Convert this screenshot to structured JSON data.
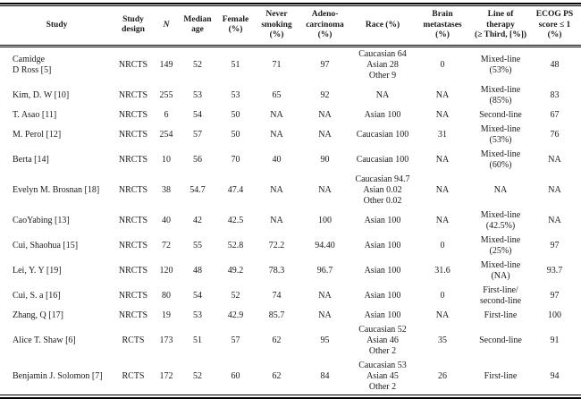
{
  "table": {
    "columns": [
      {
        "label": "Study"
      },
      {
        "label": "Study\ndesign"
      },
      {
        "label": "N"
      },
      {
        "label": "Median\nage"
      },
      {
        "label": "Female\n(%)"
      },
      {
        "label": "Never\nsmoking\n(%)"
      },
      {
        "label": "Adeno-\ncarcinoma\n(%)"
      },
      {
        "label": "Race (%)"
      },
      {
        "label": "Brain\nmetastases\n(%)"
      },
      {
        "label": "Line of\ntherapy\n(≥ Third, [%])"
      },
      {
        "label": "ECOG PS\nscore ≤ 1\n(%)"
      }
    ],
    "rows": [
      [
        "Camidge\nD Ross [5]",
        "NRCTS",
        "149",
        "52",
        "51",
        "71",
        "97",
        "Caucasian 64\nAsian 28\nOther 9",
        "0",
        "Mixed-line\n(53%)",
        "48"
      ],
      [
        "Kim, D. W [10]",
        "NRCTS",
        "255",
        "53",
        "53",
        "65",
        "92",
        "NA",
        "NA",
        "Mixed-line\n(85%)",
        "83"
      ],
      [
        "T. Asao [11]",
        "NRCTS",
        "6",
        "54",
        "50",
        "NA",
        "NA",
        "Asian 100",
        "NA",
        "Second-line",
        "67"
      ],
      [
        "M. Perol [12]",
        "NRCTS",
        "254",
        "57",
        "50",
        "NA",
        "NA",
        "Caucasian 100",
        "31",
        "Mixed-line\n(53%)",
        "76"
      ],
      [
        "Berta [14]",
        "NRCTS",
        "10",
        "56",
        "70",
        "40",
        "90",
        "Caucasian 100",
        "NA",
        "Mixed-line\n(60%)",
        "NA"
      ],
      [
        "Evelyn M. Brosnan [18]",
        "NRCTS",
        "38",
        "54.7",
        "47.4",
        "NA",
        "NA",
        "Caucasian 94.7\nAsian 0.02\nOther 0.02",
        "NA",
        "NA",
        "NA"
      ],
      [
        "CaoYabing [13]",
        "NRCTS",
        "40",
        "42",
        "42.5",
        "NA",
        "100",
        "Asian 100",
        "NA",
        "Mixed-line\n(42.5%)",
        "NA"
      ],
      [
        "Cui, Shaohua [15]",
        "NRCTS",
        "72",
        "55",
        "52.8",
        "72.2",
        "94.40",
        "Asian 100",
        "0",
        "Mixed-line\n(25%)",
        "97"
      ],
      [
        "Lei, Y. Y [19]",
        "NRCTS",
        "120",
        "48",
        "49.2",
        "78.3",
        "96.7",
        "Asian 100",
        "31.6",
        "Mixed-line\n(NA)",
        "93.7"
      ],
      [
        "Cui, S. a [16]",
        "NRCTS",
        "80",
        "54",
        "52",
        "74",
        "NA",
        "Asian 100",
        "0",
        "First-line/\nsecond-line",
        "97"
      ],
      [
        "Zhang, Q [17]",
        "NRCTS",
        "19",
        "53",
        "42.9",
        "85.7",
        "NA",
        "Asian 100",
        "NA",
        "First-line",
        "100"
      ],
      [
        "Alice T. Shaw [6]",
        "RCTS",
        "173",
        "51",
        "57",
        "62",
        "95",
        "Caucasian 52\nAsian 46\nOther 2",
        "35",
        "Second-line",
        "91"
      ],
      [
        "Benjamin J. Solomon [7]",
        "RCTS",
        "172",
        "52",
        "60",
        "62",
        "84",
        "Caucasian 53\nAsian 45\nOther 2",
        "26",
        "First-line",
        "94"
      ]
    ]
  }
}
